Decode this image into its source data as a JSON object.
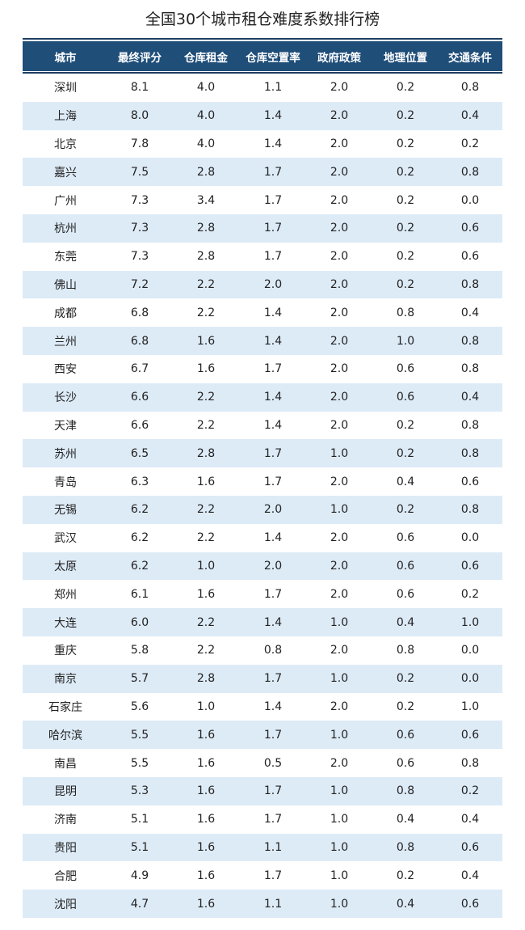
{
  "chart_data": {
    "type": "table",
    "title": "全国30个城市租仓难度系数排行榜",
    "columns": [
      "城市",
      "最终评分",
      "仓库租金",
      "仓库空置率",
      "政府政策",
      "地理位置",
      "交通条件"
    ],
    "rows": [
      [
        "深圳",
        "8.1",
        "4.0",
        "1.1",
        "2.0",
        "0.2",
        "0.8"
      ],
      [
        "上海",
        "8.0",
        "4.0",
        "1.4",
        "2.0",
        "0.2",
        "0.4"
      ],
      [
        "北京",
        "7.8",
        "4.0",
        "1.4",
        "2.0",
        "0.2",
        "0.2"
      ],
      [
        "嘉兴",
        "7.5",
        "2.8",
        "1.7",
        "2.0",
        "0.2",
        "0.8"
      ],
      [
        "广州",
        "7.3",
        "3.4",
        "1.7",
        "2.0",
        "0.2",
        "0.0"
      ],
      [
        "杭州",
        "7.3",
        "2.8",
        "1.7",
        "2.0",
        "0.2",
        "0.6"
      ],
      [
        "东莞",
        "7.3",
        "2.8",
        "1.7",
        "2.0",
        "0.2",
        "0.6"
      ],
      [
        "佛山",
        "7.2",
        "2.2",
        "2.0",
        "2.0",
        "0.2",
        "0.8"
      ],
      [
        "成都",
        "6.8",
        "2.2",
        "1.4",
        "2.0",
        "0.8",
        "0.4"
      ],
      [
        "兰州",
        "6.8",
        "1.6",
        "1.4",
        "2.0",
        "1.0",
        "0.8"
      ],
      [
        "西安",
        "6.7",
        "1.6",
        "1.7",
        "2.0",
        "0.6",
        "0.8"
      ],
      [
        "长沙",
        "6.6",
        "2.2",
        "1.4",
        "2.0",
        "0.6",
        "0.4"
      ],
      [
        "天津",
        "6.6",
        "2.2",
        "1.4",
        "2.0",
        "0.2",
        "0.8"
      ],
      [
        "苏州",
        "6.5",
        "2.8",
        "1.7",
        "1.0",
        "0.2",
        "0.8"
      ],
      [
        "青岛",
        "6.3",
        "1.6",
        "1.7",
        "2.0",
        "0.4",
        "0.6"
      ],
      [
        "无锡",
        "6.2",
        "2.2",
        "2.0",
        "1.0",
        "0.2",
        "0.8"
      ],
      [
        "武汉",
        "6.2",
        "2.2",
        "1.4",
        "2.0",
        "0.6",
        "0.0"
      ],
      [
        "太原",
        "6.2",
        "1.0",
        "2.0",
        "2.0",
        "0.6",
        "0.6"
      ],
      [
        "郑州",
        "6.1",
        "1.6",
        "1.7",
        "2.0",
        "0.6",
        "0.2"
      ],
      [
        "大连",
        "6.0",
        "2.2",
        "1.4",
        "1.0",
        "0.4",
        "1.0"
      ],
      [
        "重庆",
        "5.8",
        "2.2",
        "0.8",
        "2.0",
        "0.8",
        "0.0"
      ],
      [
        "南京",
        "5.7",
        "2.8",
        "1.7",
        "1.0",
        "0.2",
        "0.0"
      ],
      [
        "石家庄",
        "5.6",
        "1.0",
        "1.4",
        "2.0",
        "0.2",
        "1.0"
      ],
      [
        "哈尔滨",
        "5.5",
        "1.6",
        "1.7",
        "1.0",
        "0.6",
        "0.6"
      ],
      [
        "南昌",
        "5.5",
        "1.6",
        "0.5",
        "2.0",
        "0.6",
        "0.8"
      ],
      [
        "昆明",
        "5.3",
        "1.6",
        "1.7",
        "1.0",
        "0.8",
        "0.2"
      ],
      [
        "济南",
        "5.1",
        "1.6",
        "1.7",
        "1.0",
        "0.4",
        "0.4"
      ],
      [
        "贵阳",
        "5.1",
        "1.6",
        "1.1",
        "1.0",
        "0.8",
        "0.6"
      ],
      [
        "合肥",
        "4.9",
        "1.6",
        "1.7",
        "1.0",
        "0.2",
        "0.4"
      ],
      [
        "沈阳",
        "4.7",
        "1.6",
        "1.1",
        "1.0",
        "0.4",
        "0.6"
      ]
    ],
    "colors": {
      "header_bg": "#1f4e79",
      "header_text": "#ffffff",
      "stripe": "#ddebf7",
      "rule": "#1f3f63"
    }
  }
}
